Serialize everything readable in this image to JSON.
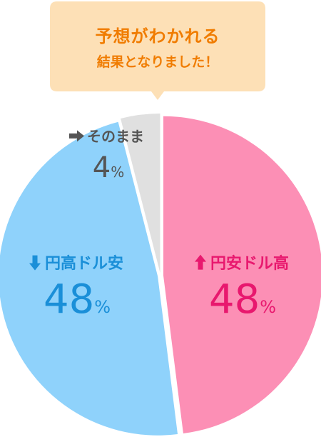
{
  "callout": {
    "line1": "予想がわかれる",
    "line2": "結果となりました！",
    "bg_color": "#fde0b6",
    "text_color": "#f07c00"
  },
  "chart_data": {
    "type": "pie",
    "start": "12 o'clock",
    "direction": "clockwise",
    "slices": [
      {
        "label": "円安ドル高",
        "value": 48,
        "value_text": "48",
        "unit": "%",
        "icon": "up-arrow-icon",
        "color": "#fc8fb5",
        "text_color": "#e8186e"
      },
      {
        "label": "円高ドル安",
        "value": 48,
        "value_text": "48",
        "unit": "%",
        "icon": "down-arrow-icon",
        "color": "#8fd2fb",
        "text_color": "#1a8fd8"
      },
      {
        "label": "そのまま",
        "value": 4,
        "value_text": "4",
        "unit": "%",
        "icon": "right-arrow-icon",
        "color": "#e0e0e0",
        "text_color": "#555555"
      }
    ]
  }
}
